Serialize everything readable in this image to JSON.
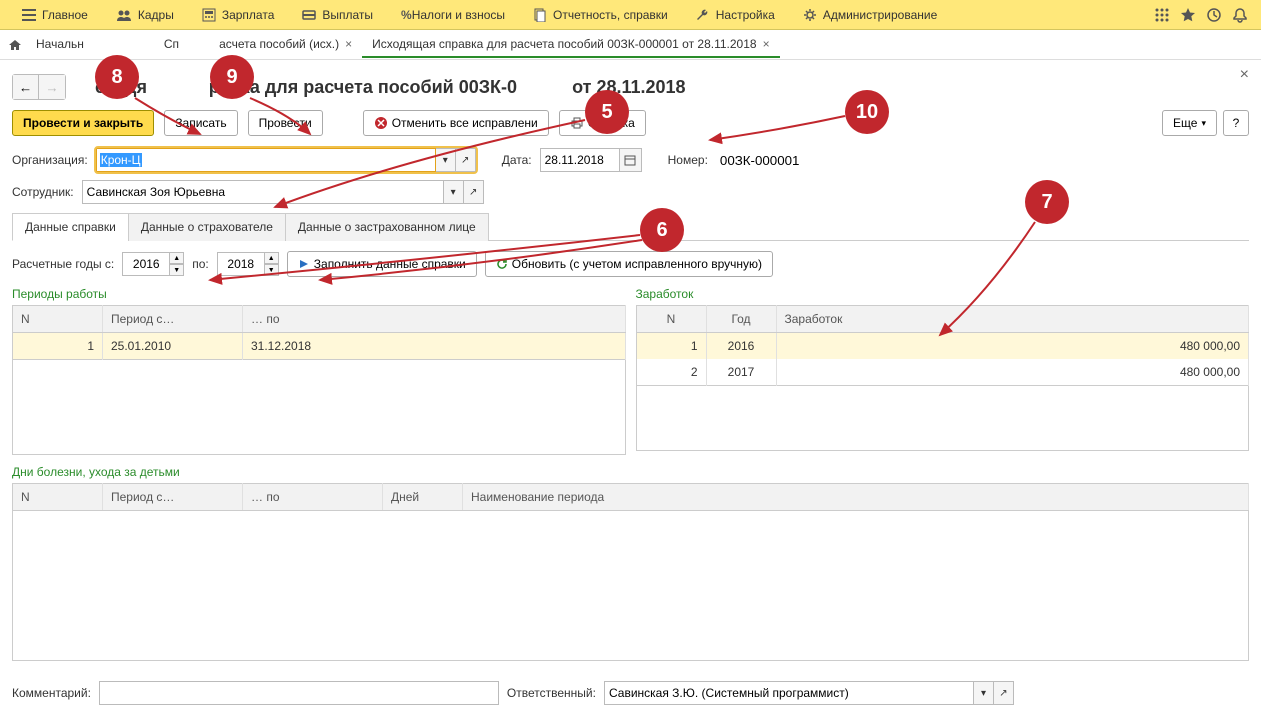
{
  "menu": {
    "main": "Главное",
    "hr": "Кадры",
    "salary": "Зарплата",
    "payments": "Выплаты",
    "taxes": "Налоги и взносы",
    "reports": "Отчетность, справки",
    "settings": "Настройка",
    "admin": "Администрирование"
  },
  "tabs": {
    "t1": "Начальн",
    "t2_prefix": "Сп",
    "t2_suffix": "асчета пособий (исх.)",
    "t3": "Исходящая справка для расчета пособий 00ЗК-000001 от 28.11.2018"
  },
  "page_title_prefix": "сходя",
  "page_title_mid": "равка для расчета пособий 00ЗК-0",
  "page_title_suffix": "от 28.11.2018",
  "toolbar": {
    "post_close": "Провести и закрыть",
    "save": "Записать",
    "post": "Провести",
    "cancel_fix": "Отменить все исправлени",
    "spravka": "Справка",
    "more": "Еще"
  },
  "form": {
    "org_label": "Организация:",
    "org_value": "Крон-Ц",
    "date_label": "Дата:",
    "date_value": "28.11.2018",
    "number_label": "Номер:",
    "number_value": "00ЗК-000001",
    "emp_label": "Сотрудник:",
    "emp_value": "Савинская Зоя Юрьевна"
  },
  "inner_tabs": {
    "t1": "Данные справки",
    "t2": "Данные о страхователе",
    "t3": "Данные о застрахованном лице"
  },
  "years": {
    "label_from": "Расчетные годы с:",
    "from": "2016",
    "label_to": "по:",
    "to": "2018",
    "fill_btn": "Заполнить данные справки",
    "refresh_btn": "Обновить (с учетом исправленного вручную)"
  },
  "periods": {
    "title": "Периоды работы",
    "col_n": "N",
    "col_from": "Период с…",
    "col_to": "… по",
    "rows": [
      {
        "n": "1",
        "from": "25.01.2010",
        "to": "31.12.2018"
      }
    ]
  },
  "earnings": {
    "title": "Заработок",
    "col_n": "N",
    "col_year": "Год",
    "col_amount": "Заработок",
    "rows": [
      {
        "n": "1",
        "year": "2016",
        "amount": "480 000,00"
      },
      {
        "n": "2",
        "year": "2017",
        "amount": "480 000,00"
      }
    ]
  },
  "sick": {
    "title": "Дни болезни, ухода за детьми",
    "col_n": "N",
    "col_from": "Период с…",
    "col_to": "… по",
    "col_days": "Дней",
    "col_name": "Наименование периода"
  },
  "footer": {
    "comment_label": "Комментарий:",
    "resp_label": "Ответственный:",
    "resp_value": "Савинская З.Ю. (Системный программист)"
  },
  "callouts": {
    "c5": "5",
    "c6": "6",
    "c7": "7",
    "c8": "8",
    "c9": "9",
    "c10": "10"
  },
  "colors": {
    "menu_bg": "#ffe87a",
    "primary_btn": "#ffdb4d",
    "callout": "#c1272d",
    "green": "#2a8c2a"
  }
}
